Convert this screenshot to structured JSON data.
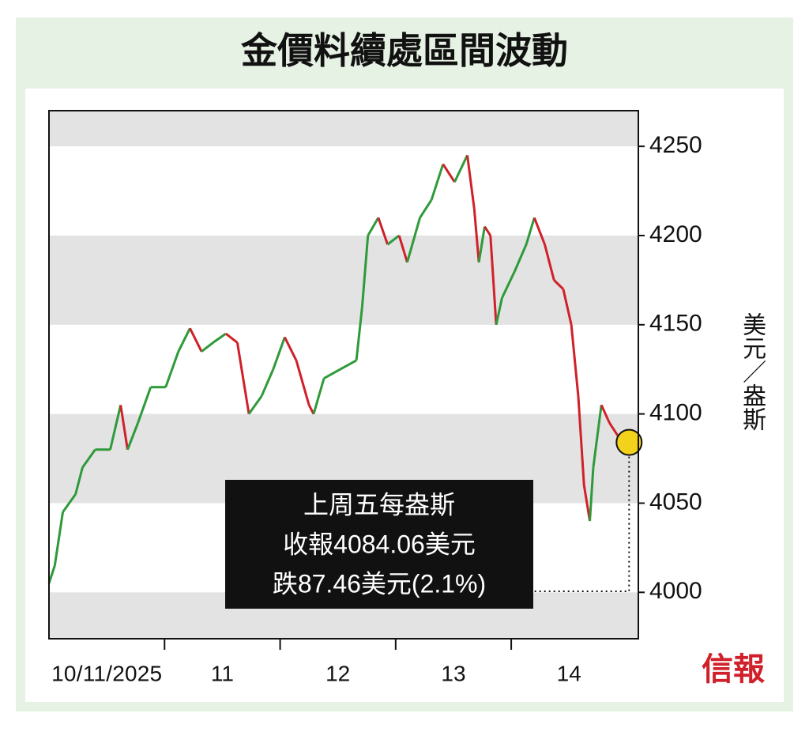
{
  "chart_data": {
    "type": "line",
    "title": "金價料續處區間波動",
    "y_axis_label": "美元／盎斯",
    "day_labels": [
      "10/11/2025",
      "11",
      "12",
      "13",
      "14"
    ],
    "x": [
      0,
      0.05,
      0.12,
      0.23,
      0.29,
      0.4,
      0.53,
      0.62,
      0.68,
      0.77,
      0.88,
      1.01,
      1.12,
      1.22,
      1.32,
      1.42,
      1.53,
      1.63,
      1.73,
      1.84,
      1.94,
      2.04,
      2.14,
      2.25,
      2.29,
      2.38,
      2.52,
      2.66,
      2.71,
      2.76,
      2.85,
      2.93,
      3.03,
      3.1,
      3.21,
      3.31,
      3.41,
      3.51,
      3.62,
      3.68,
      3.72,
      3.77,
      3.82,
      3.87,
      3.92,
      4.03,
      4.13,
      4.2,
      4.29,
      4.37,
      4.45,
      4.52,
      4.58,
      4.63,
      4.68,
      4.71,
      4.78,
      4.85,
      4.92,
      4.99,
      5.02
    ],
    "values": [
      4005,
      4015,
      4045,
      4055,
      4070,
      4080,
      4080,
      4105,
      4080,
      4095,
      4115,
      4115,
      4135,
      4148,
      4135,
      4140,
      4145,
      4140,
      4100,
      4110,
      4125,
      4143,
      4130,
      4105,
      4100,
      4120,
      4125,
      4130,
      4160,
      4200,
      4210,
      4195,
      4200,
      4185,
      4210,
      4220,
      4240,
      4230,
      4245,
      4215,
      4185,
      4205,
      4200,
      4150,
      4165,
      4180,
      4195,
      4210,
      4195,
      4175,
      4170,
      4150,
      4110,
      4060,
      4040,
      4070,
      4105,
      4095,
      4088,
      4080,
      4084.06
    ],
    "up_color": "#2e9a3a",
    "down_color": "#d0202a",
    "marker_color": "#f2d21b",
    "xlim": [
      0,
      5.1
    ],
    "ylim": [
      3974,
      4270
    ],
    "yticks": [
      4000,
      4050,
      4100,
      4150,
      4200,
      4250
    ],
    "bands": true,
    "annotation": [
      "上周五每盎斯",
      "收報4084.06美元",
      "跌87.46美元(2.1%)"
    ],
    "logo": "信報"
  }
}
